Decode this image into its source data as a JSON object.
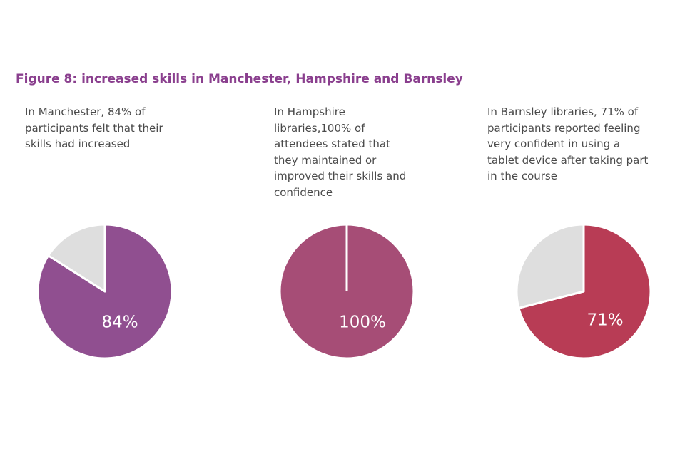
{
  "figure_title": "Figure 8: increased skills in Manchester, Hampshire and Barnsley",
  "captions": [
    "In Manchester, 84% of\nparticipants felt that their\nskills had increased",
    "In Hampshire\nlibraries,100% of\nattendees stated that\nthey maintained or\nimproved their skills and\nconfidence",
    "In Barnsley libraries, 71% of\nparticipants reported feeling\nvery confident in using a\ntablet device after taking part\nin the course"
  ],
  "colors": {
    "title": "#8a3f8e",
    "remainder": "#dedede",
    "label": "#ffffff"
  },
  "chart_data": [
    {
      "type": "pie",
      "title": "",
      "slices": [
        {
          "value": 84,
          "color": "#904f90"
        },
        {
          "value": 16,
          "color": "#dedede"
        }
      ],
      "data_label": "84%"
    },
    {
      "type": "pie",
      "title": "",
      "slices": [
        {
          "value": 100,
          "color": "#a64d76"
        }
      ],
      "data_label": "100%"
    },
    {
      "type": "pie",
      "title": "",
      "slices": [
        {
          "value": 71,
          "color": "#b83c55"
        },
        {
          "value": 29,
          "color": "#dedede"
        }
      ],
      "data_label": "71%"
    }
  ]
}
